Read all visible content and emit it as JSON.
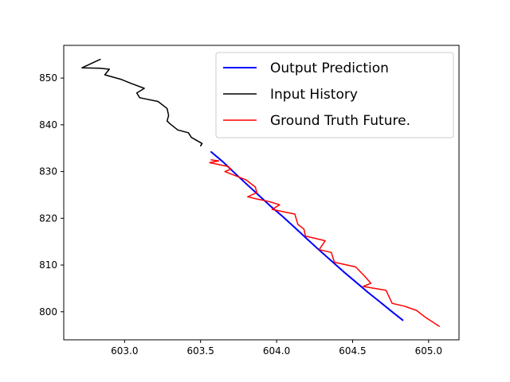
{
  "chart_data": {
    "type": "line",
    "title": "",
    "xlabel": "",
    "ylabel": "",
    "xlim": [
      602.6,
      605.2
    ],
    "ylim": [
      794,
      857
    ],
    "xticks": [
      {
        "value": 603.0,
        "label": "603.0"
      },
      {
        "value": 603.5,
        "label": "603.5"
      },
      {
        "value": 604.0,
        "label": "604.0"
      },
      {
        "value": 604.5,
        "label": "604.5"
      },
      {
        "value": 605.0,
        "label": "605.0"
      }
    ],
    "yticks": [
      {
        "value": 800,
        "label": "800"
      },
      {
        "value": 810,
        "label": "810"
      },
      {
        "value": 820,
        "label": "820"
      },
      {
        "value": 830,
        "label": "830"
      },
      {
        "value": 840,
        "label": "840"
      },
      {
        "value": 850,
        "label": "850"
      }
    ],
    "grid": false,
    "legend_position": "top-right",
    "series": [
      {
        "name": "Output Prediction",
        "color": "#0000ff",
        "width": 2,
        "points": [
          [
            603.57,
            834.2
          ],
          [
            603.65,
            832.0
          ],
          [
            603.72,
            829.8
          ],
          [
            603.8,
            827.4
          ],
          [
            603.88,
            825.0
          ],
          [
            603.96,
            822.6
          ],
          [
            604.04,
            820.4
          ],
          [
            604.12,
            818.0
          ],
          [
            604.2,
            815.6
          ],
          [
            604.28,
            813.2
          ],
          [
            604.36,
            810.9
          ],
          [
            604.44,
            808.6
          ],
          [
            604.52,
            806.4
          ],
          [
            604.6,
            804.2
          ],
          [
            604.68,
            802.1
          ],
          [
            604.76,
            800.0
          ],
          [
            604.83,
            798.2
          ]
        ]
      },
      {
        "name": "Input History",
        "color": "#000000",
        "width": 1.5,
        "points": [
          [
            603.5,
            835.5
          ],
          [
            603.51,
            836.0
          ],
          [
            603.44,
            837.3
          ],
          [
            603.42,
            838.3
          ],
          [
            603.35,
            838.9
          ],
          [
            603.3,
            840.2
          ],
          [
            603.28,
            840.8
          ],
          [
            603.29,
            842.0
          ],
          [
            603.28,
            843.5
          ],
          [
            603.22,
            845.0
          ],
          [
            603.1,
            845.8
          ],
          [
            603.08,
            846.8
          ],
          [
            603.13,
            847.8
          ],
          [
            603.04,
            848.9
          ],
          [
            602.98,
            849.7
          ],
          [
            602.87,
            850.7
          ],
          [
            602.9,
            851.9
          ],
          [
            602.84,
            852.1
          ],
          [
            602.72,
            852.2
          ],
          [
            602.84,
            854.0
          ]
        ]
      },
      {
        "name": "Ground Truth Future.",
        "color": "#ff0000",
        "width": 1.5,
        "points": [
          [
            603.57,
            832.5
          ],
          [
            603.62,
            832.3
          ],
          [
            603.56,
            831.9
          ],
          [
            603.68,
            831.1
          ],
          [
            603.7,
            830.5
          ],
          [
            603.66,
            830.0
          ],
          [
            603.8,
            828.2
          ],
          [
            603.86,
            826.7
          ],
          [
            603.87,
            825.5
          ],
          [
            603.81,
            824.6
          ],
          [
            603.86,
            824.2
          ],
          [
            603.95,
            823.6
          ],
          [
            604.02,
            822.9
          ],
          [
            603.97,
            821.9
          ],
          [
            604.12,
            820.9
          ],
          [
            604.14,
            818.7
          ],
          [
            604.18,
            817.7
          ],
          [
            604.19,
            816.2
          ],
          [
            604.32,
            815.2
          ],
          [
            604.28,
            813.3
          ],
          [
            604.36,
            812.7
          ],
          [
            604.38,
            810.6
          ],
          [
            604.52,
            809.6
          ],
          [
            604.58,
            807.6
          ],
          [
            604.62,
            806.1
          ],
          [
            604.57,
            805.4
          ],
          [
            604.72,
            804.6
          ],
          [
            604.76,
            801.8
          ],
          [
            604.84,
            801.2
          ],
          [
            604.92,
            800.3
          ],
          [
            604.98,
            798.8
          ],
          [
            605.07,
            796.9
          ]
        ]
      }
    ]
  }
}
